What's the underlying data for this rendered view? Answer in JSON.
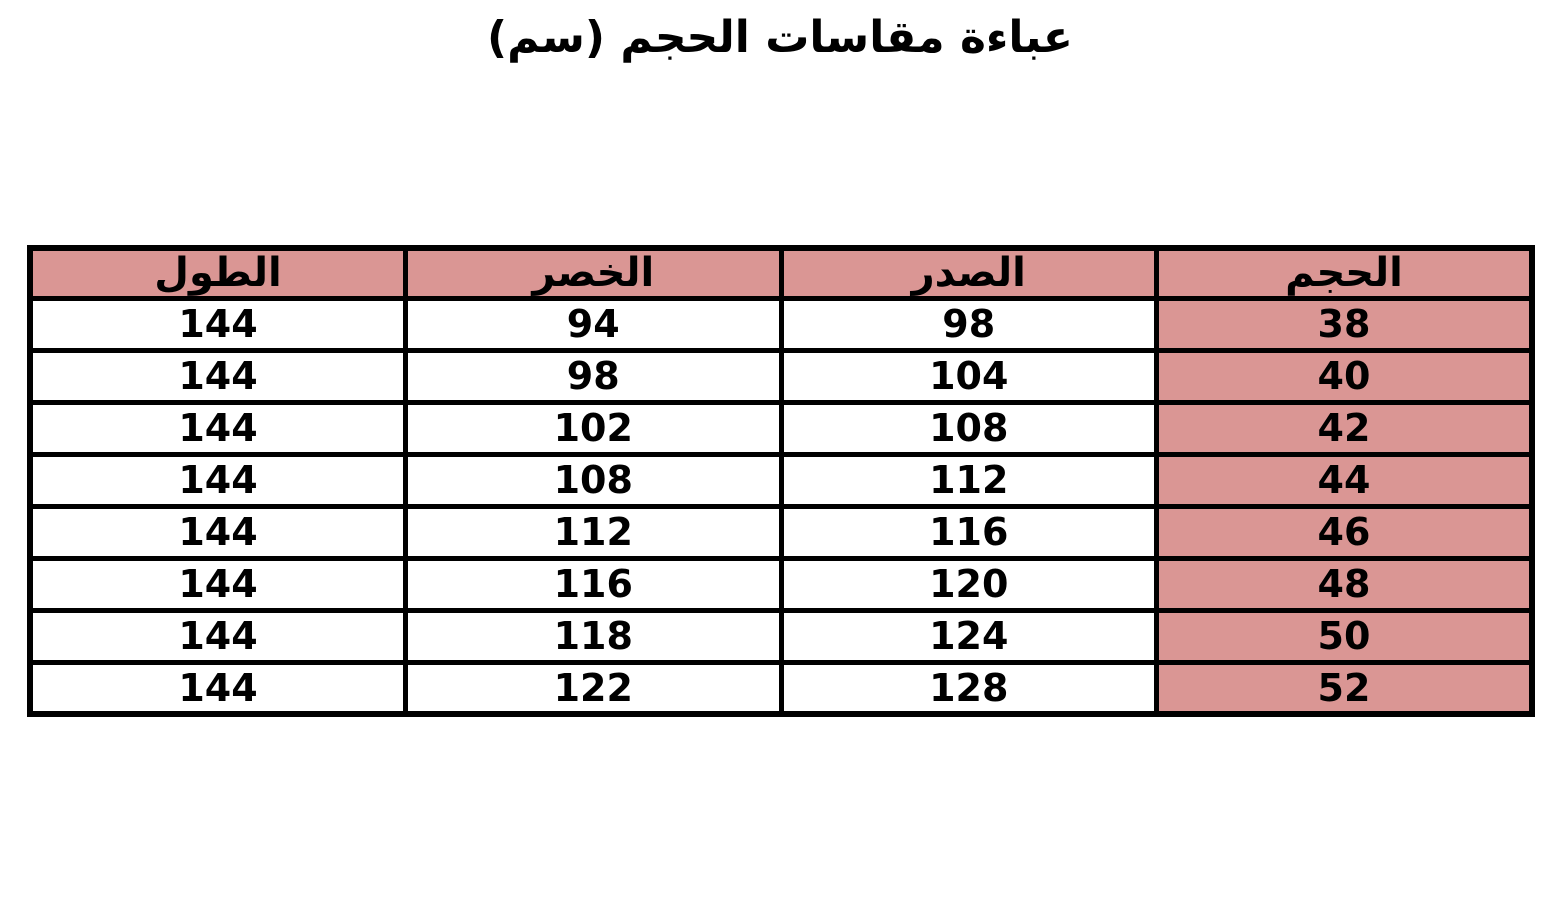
{
  "title": "عباءة مقاسات الحجم (سم)",
  "colors": {
    "header_bg": "#DA9694",
    "size_column_bg": "#DA9694",
    "row_bg": "#FFFFFF",
    "border": "#000000",
    "text": "#000000"
  },
  "table": {
    "direction": "rtl",
    "columns": {
      "size": "الحجم",
      "chest": "الصدر",
      "waist": "الخصر",
      "length": "الطول"
    },
    "rows": [
      {
        "size": "38",
        "chest": "98",
        "waist": "94",
        "length": "144"
      },
      {
        "size": "40",
        "chest": "104",
        "waist": "98",
        "length": "144"
      },
      {
        "size": "42",
        "chest": "108",
        "waist": "102",
        "length": "144"
      },
      {
        "size": "44",
        "chest": "112",
        "waist": "108",
        "length": "144"
      },
      {
        "size": "46",
        "chest": "116",
        "waist": "112",
        "length": "144"
      },
      {
        "size": "48",
        "chest": "120",
        "waist": "116",
        "length": "144"
      },
      {
        "size": "50",
        "chest": "124",
        "waist": "118",
        "length": "144"
      },
      {
        "size": "52",
        "chest": "128",
        "waist": "122",
        "length": "144"
      }
    ]
  }
}
